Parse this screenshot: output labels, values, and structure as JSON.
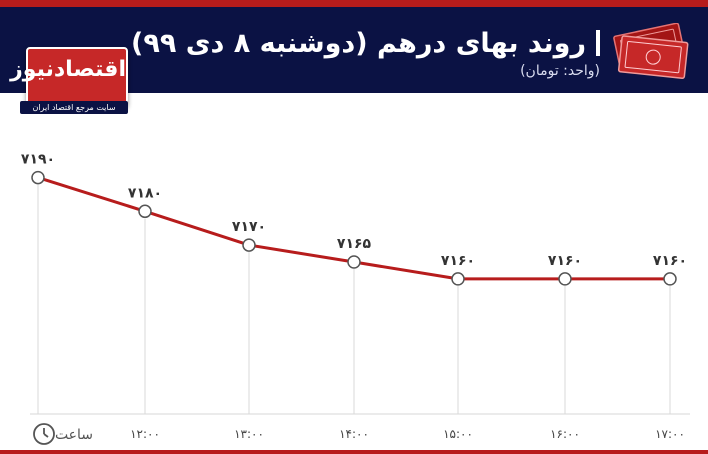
{
  "header": {
    "title": "روند بهای درهم (دوشنبه ۸ دی ۹۹)",
    "unit": "(واحد: تومان)"
  },
  "logo": {
    "name": "اقتصادنیوز",
    "tagline": "سایت مرجع اقتصاد ایران"
  },
  "colors": {
    "header_bg": "#0b1244",
    "accent_red": "#b71c1c",
    "line": "#b71c1c"
  },
  "chart_data": {
    "type": "line",
    "x": [
      "",
      "۱۲:۰۰",
      "۱۳:۰۰",
      "۱۴:۰۰",
      "۱۵:۰۰",
      "۱۶:۰۰",
      "۱۷:۰۰"
    ],
    "value_labels": [
      "۷۱۹۰",
      "۷۱۸۰",
      "۷۱۷۰",
      "۷۱۶۵",
      "۷۱۶۰",
      "۷۱۶۰",
      "۷۱۶۰"
    ],
    "values": [
      7190,
      7180,
      7170,
      7165,
      7160,
      7160,
      7160
    ],
    "ylim": [
      7120,
      7210
    ],
    "xlabel": "ساعت",
    "ylabel": "",
    "grid": "vertical"
  }
}
